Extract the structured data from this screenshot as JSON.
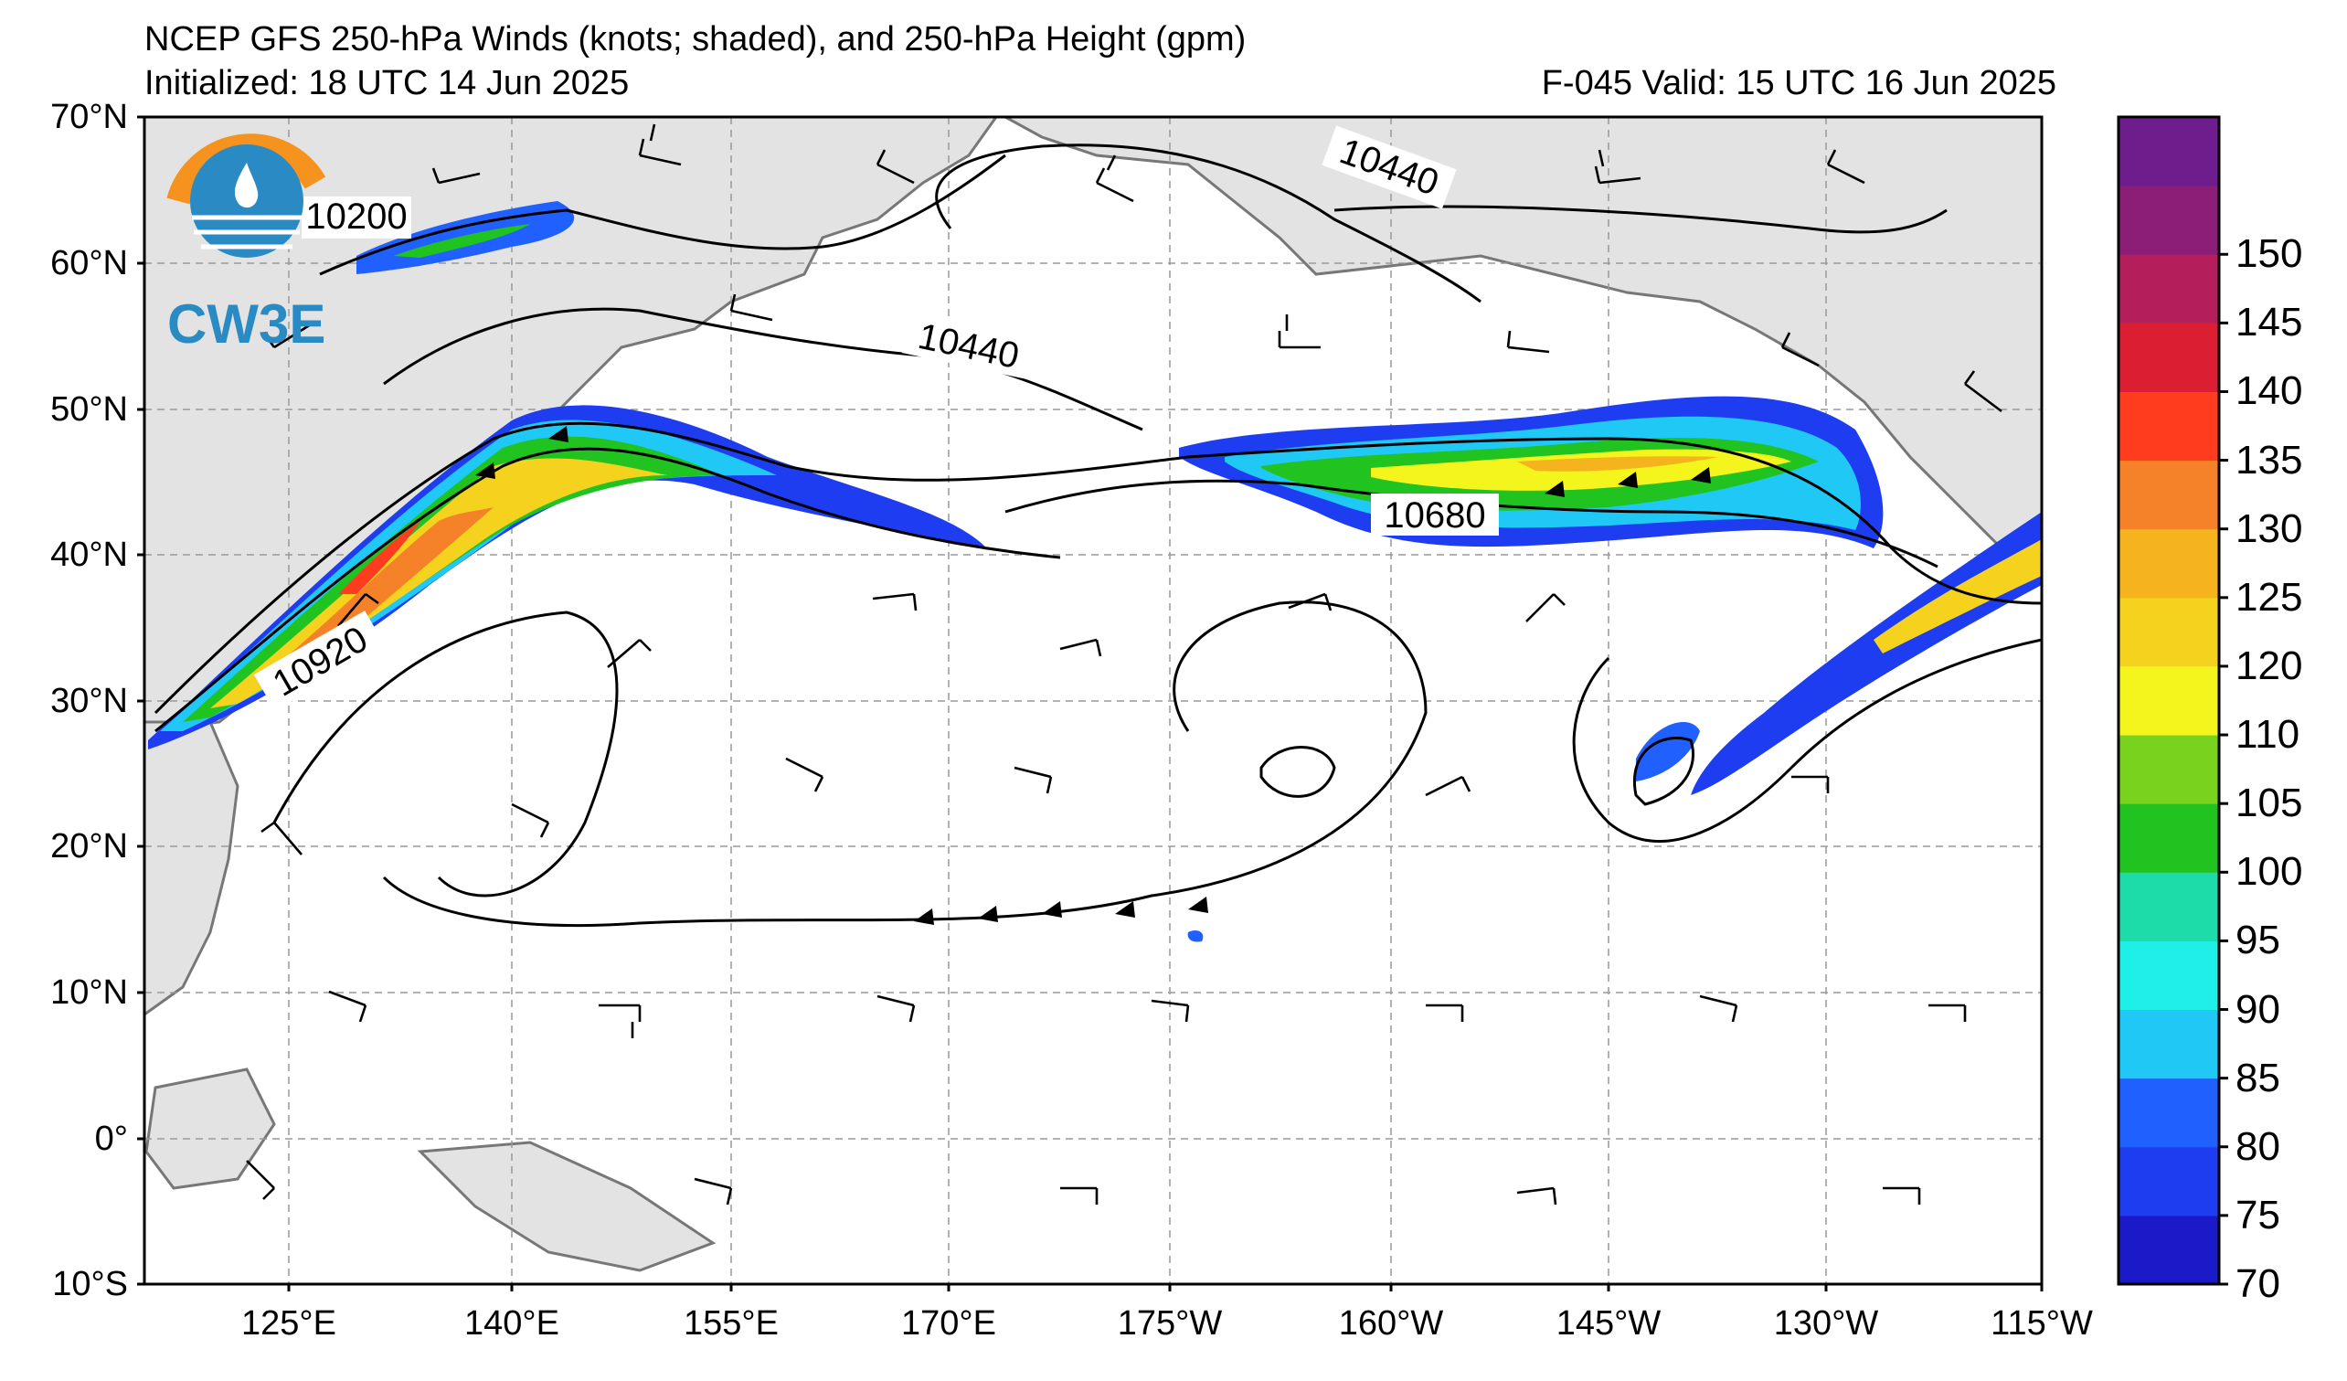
{
  "header": {
    "title": "NCEP GFS 250-hPa Winds (knots; shaded), and 250-hPa Height (gpm)",
    "initialized": "Initialized: 18 UTC 14 Jun 2025",
    "valid": "F-045  Valid: 15 UTC 16 Jun 2025"
  },
  "logo": {
    "text": "CW3E",
    "colors": {
      "orange": "#F6921E",
      "blue": "#2A8BC4"
    }
  },
  "axes": {
    "lat_labels": [
      "70°N",
      "60°N",
      "50°N",
      "40°N",
      "30°N",
      "20°N",
      "10°N",
      "0°",
      "10°S"
    ],
    "lon_labels": [
      "125°E",
      "140°E",
      "155°E",
      "170°E",
      "175°W",
      "160°W",
      "145°W",
      "130°W",
      "115°W"
    ]
  },
  "colorbar": {
    "ticks": [
      "70",
      "75",
      "80",
      "85",
      "90",
      "95",
      "100",
      "105",
      "110",
      "120",
      "125",
      "130",
      "135",
      "140",
      "145",
      "150"
    ],
    "colors": [
      "#1A1AC8",
      "#1E3DF0",
      "#2060FF",
      "#20C8F5",
      "#1EF0E8",
      "#1EDBAA",
      "#20C320",
      "#78D21E",
      "#F5F51E",
      "#F5D21E",
      "#F5B41E",
      "#F58228",
      "#FF3C1E",
      "#DC1E32",
      "#B41E5A",
      "#8C1E78",
      "#6E1E8C"
    ]
  },
  "contours": {
    "labels": [
      "10200",
      "10440",
      "10440",
      "10680",
      "10920"
    ]
  }
}
